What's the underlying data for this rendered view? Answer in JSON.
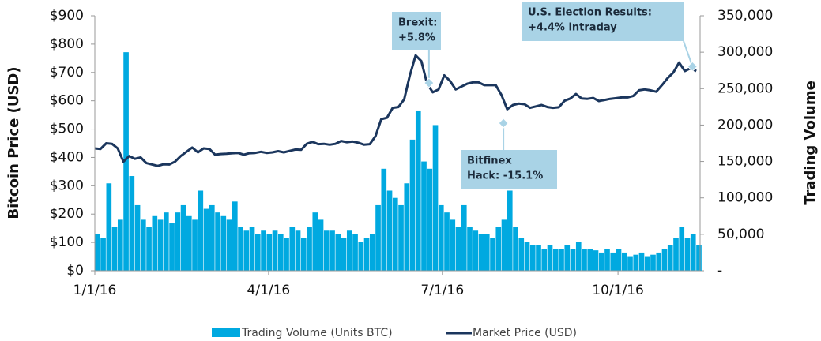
{
  "chart_data": {
    "type": "combo",
    "y_label": "Bitcoin Price (USD)",
    "y2_label": "Trading Volume",
    "x": [
      "1/1/16",
      "1/4/16",
      "1/7/16",
      "1/10/16",
      "1/13/16",
      "1/16/16",
      "1/19/16",
      "1/22/16",
      "1/25/16",
      "1/28/16",
      "1/31/16",
      "2/3/16",
      "2/6/16",
      "2/9/16",
      "2/12/16",
      "2/15/16",
      "2/18/16",
      "2/21/16",
      "2/24/16",
      "2/27/16",
      "3/1/16",
      "3/4/16",
      "3/7/16",
      "3/10/16",
      "3/13/16",
      "3/16/16",
      "3/19/16",
      "3/22/16",
      "3/25/16",
      "3/28/16",
      "3/31/16",
      "4/3/16",
      "4/6/16",
      "4/9/16",
      "4/12/16",
      "4/15/16",
      "4/18/16",
      "4/21/16",
      "4/24/16",
      "4/27/16",
      "4/30/16",
      "5/3/16",
      "5/6/16",
      "5/9/16",
      "5/12/16",
      "5/15/16",
      "5/18/16",
      "5/21/16",
      "5/24/16",
      "5/27/16",
      "5/30/16",
      "6/2/16",
      "6/5/16",
      "6/8/16",
      "6/11/16",
      "6/14/16",
      "6/17/16",
      "6/20/16",
      "6/23/16",
      "6/26/16",
      "6/29/16",
      "7/2/16",
      "7/5/16",
      "7/8/16",
      "7/11/16",
      "7/14/16",
      "7/17/16",
      "7/20/16",
      "7/23/16",
      "7/26/16",
      "7/29/16",
      "8/1/16",
      "8/4/16",
      "8/7/16",
      "8/10/16",
      "8/13/16",
      "8/16/16",
      "8/19/16",
      "8/22/16",
      "8/25/16",
      "8/28/16",
      "8/31/16",
      "9/3/16",
      "9/6/16",
      "9/9/16",
      "9/12/16",
      "9/15/16",
      "9/18/16",
      "9/21/16",
      "9/24/16",
      "9/27/16",
      "9/30/16",
      "10/3/16",
      "10/6/16",
      "10/9/16",
      "10/12/16",
      "10/15/16",
      "10/18/16",
      "10/21/16",
      "10/24/16",
      "10/27/16",
      "10/30/16",
      "11/2/16",
      "11/5/16",
      "11/8/16",
      "11/11/16"
    ],
    "series": [
      {
        "name": "Trading Volume (Units BTC)",
        "type": "bar",
        "axis": "y2",
        "color": "#00a9e0",
        "values": [
          50000,
          45000,
          120000,
          60000,
          70000,
          300000,
          130000,
          90000,
          70000,
          60000,
          75000,
          70000,
          80000,
          65000,
          80000,
          90000,
          75000,
          70000,
          110000,
          85000,
          90000,
          80000,
          75000,
          70000,
          95000,
          60000,
          55000,
          60000,
          50000,
          55000,
          50000,
          55000,
          50000,
          45000,
          60000,
          55000,
          45000,
          60000,
          80000,
          70000,
          55000,
          55000,
          50000,
          45000,
          55000,
          50000,
          40000,
          45000,
          50000,
          90000,
          140000,
          110000,
          100000,
          90000,
          120000,
          180000,
          220000,
          150000,
          140000,
          200000,
          90000,
          80000,
          70000,
          60000,
          90000,
          60000,
          55000,
          50000,
          50000,
          45000,
          60000,
          70000,
          110000,
          60000,
          45000,
          40000,
          35000,
          35000,
          30000,
          35000,
          30000,
          30000,
          35000,
          30000,
          40000,
          30000,
          30000,
          28000,
          25000,
          30000,
          25000,
          30000,
          25000,
          20000,
          22000,
          25000,
          20000,
          22000,
          25000,
          30000,
          35000,
          45000,
          60000,
          45000,
          50000,
          35000
        ]
      },
      {
        "name": "Market Price (USD)",
        "type": "line",
        "color": "#1b365d",
        "values": [
          432,
          430,
          450,
          448,
          432,
          385,
          405,
          395,
          400,
          380,
          375,
          370,
          376,
          375,
          385,
          405,
          420,
          435,
          418,
          432,
          430,
          410,
          412,
          413,
          415,
          416,
          410,
          415,
          416,
          420,
          416,
          418,
          422,
          418,
          423,
          428,
          427,
          448,
          455,
          447,
          448,
          445,
          448,
          458,
          454,
          456,
          452,
          445,
          447,
          475,
          535,
          540,
          575,
          578,
          605,
          690,
          760,
          740,
          660,
          630,
          640,
          690,
          670,
          640,
          650,
          660,
          665,
          665,
          655,
          655,
          655,
          620,
          570,
          585,
          590,
          588,
          575,
          580,
          585,
          578,
          575,
          577,
          600,
          608,
          624,
          608,
          607,
          610,
          599,
          603,
          607,
          609,
          612,
          612,
          617,
          637,
          640,
          637,
          632,
          655,
          680,
          700,
          735,
          705,
          715,
          705
        ]
      }
    ],
    "xlim": [
      "1/1/16",
      "11/13/16"
    ],
    "xticks": [
      "1/1/16",
      "4/1/16",
      "7/1/16",
      "10/1/16"
    ],
    "ylim": [
      0,
      900
    ],
    "yticks": [
      {
        "value": 0,
        "label": "$0"
      },
      {
        "value": 100,
        "label": "$100"
      },
      {
        "value": 200,
        "label": "$200"
      },
      {
        "value": 300,
        "label": "$300"
      },
      {
        "value": 400,
        "label": "$400"
      },
      {
        "value": 500,
        "label": "$500"
      },
      {
        "value": 600,
        "label": "$600"
      },
      {
        "value": 700,
        "label": "$700"
      },
      {
        "value": 800,
        "label": "$800"
      },
      {
        "value": 900,
        "label": "$900"
      }
    ],
    "y2lim": [
      0,
      350000
    ],
    "y2ticks": [
      {
        "value": 0,
        "label": "-"
      },
      {
        "value": 50000,
        "label": "50,000"
      },
      {
        "value": 100000,
        "label": "100,000"
      },
      {
        "value": 150000,
        "label": "150,000"
      },
      {
        "value": 200000,
        "label": "200,000"
      },
      {
        "value": 250000,
        "label": "250,000"
      },
      {
        "value": 300000,
        "label": "300,000"
      },
      {
        "value": 350000,
        "label": "350,000"
      }
    ],
    "annotations": [
      {
        "lines": [
          "Brexit:",
          "+5.8%"
        ],
        "x": "6/24/16",
        "y": 663
      },
      {
        "lines": [
          "Bitfinex",
          "Hack: -15.1%"
        ],
        "x": "8/2/16",
        "y": 521
      },
      {
        "lines": [
          "U.S. Election Results:",
          "+4.4% intraday"
        ],
        "x": "11/9/16",
        "y": 721
      }
    ],
    "legend": "bottom"
  }
}
